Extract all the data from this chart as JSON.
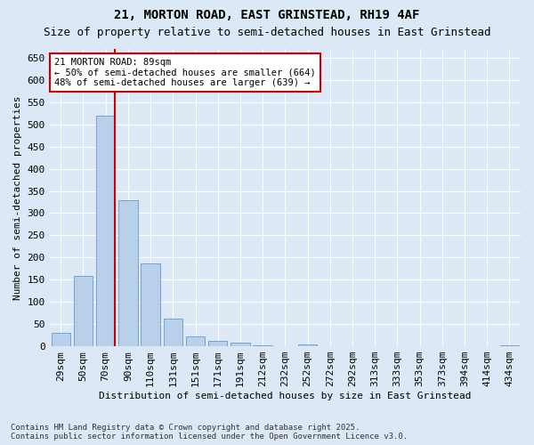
{
  "title": "21, MORTON ROAD, EAST GRINSTEAD, RH19 4AF",
  "subtitle": "Size of property relative to semi-detached houses in East Grinstead",
  "xlabel": "Distribution of semi-detached houses by size in East Grinstead",
  "ylabel": "Number of semi-detached properties",
  "categories": [
    "29sqm",
    "50sqm",
    "70sqm",
    "90sqm",
    "110sqm",
    "131sqm",
    "151sqm",
    "171sqm",
    "191sqm",
    "212sqm",
    "232sqm",
    "252sqm",
    "272sqm",
    "292sqm",
    "313sqm",
    "333sqm",
    "353sqm",
    "373sqm",
    "394sqm",
    "414sqm",
    "434sqm"
  ],
  "values": [
    30,
    158,
    520,
    330,
    187,
    62,
    22,
    13,
    8,
    3,
    0,
    4,
    0,
    0,
    0,
    0,
    0,
    0,
    0,
    0,
    3
  ],
  "bar_color": "#b8d0ea",
  "bar_edge_color": "#6699cc",
  "vline_color": "#cc0000",
  "annotation_box_edge_color": "#cc0000",
  "ylim": [
    0,
    670
  ],
  "yticks": [
    0,
    50,
    100,
    150,
    200,
    250,
    300,
    350,
    400,
    450,
    500,
    550,
    600,
    650
  ],
  "background_color": "#dce8f5",
  "grid_color": "#ffffff",
  "marker_label": "21 MORTON ROAD: 89sqm",
  "smaller_pct": "50%",
  "smaller_count": 664,
  "larger_pct": "48%",
  "larger_count": 639,
  "title_fontsize": 10,
  "subtitle_fontsize": 9,
  "axis_label_fontsize": 8,
  "tick_fontsize": 8,
  "footer_line1": "Contains HM Land Registry data © Crown copyright and database right 2025.",
  "footer_line2": "Contains public sector information licensed under the Open Government Licence v3.0."
}
